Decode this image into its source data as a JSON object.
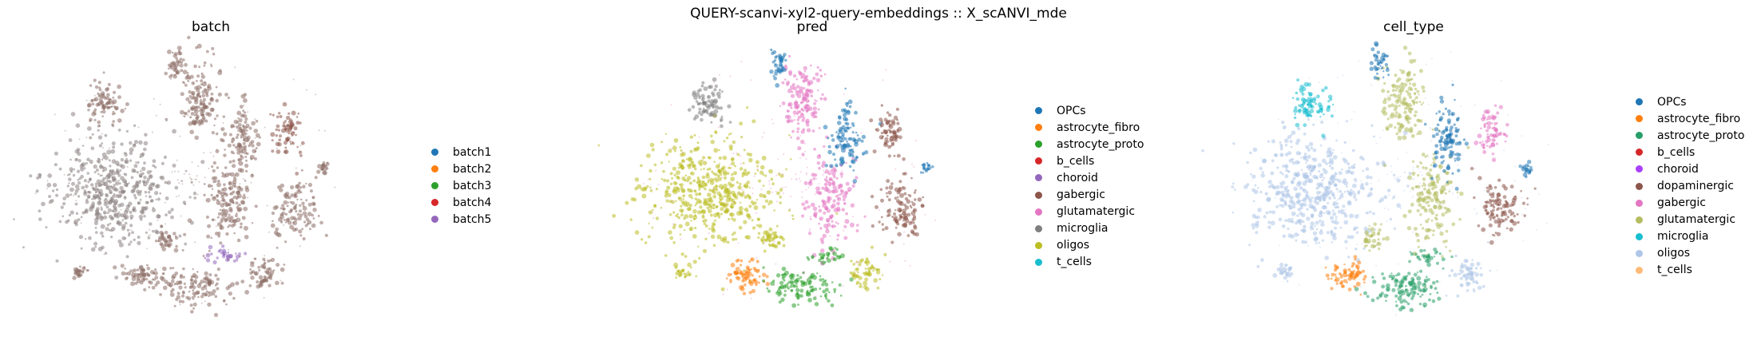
{
  "suptitle": "QUERY-scanvi-xyl2-query-embeddings :: X_scANVI_mde",
  "chart_data": [
    {
      "type": "scatter",
      "title": "batch",
      "legend_placement": "right",
      "grid": false,
      "axes_visible": false,
      "legend": [
        {
          "label": "batch1",
          "color": "#1f77b4"
        },
        {
          "label": "batch2",
          "color": "#ff7f0e"
        },
        {
          "label": "batch3",
          "color": "#2ca02c"
        },
        {
          "label": "batch4",
          "color": "#d62728"
        },
        {
          "label": "batch5",
          "color": "#9467bd"
        }
      ]
    },
    {
      "type": "scatter",
      "title": "pred",
      "legend_placement": "right",
      "grid": false,
      "axes_visible": false,
      "legend": [
        {
          "label": "OPCs",
          "color": "#1f77b4"
        },
        {
          "label": "astrocyte_fibro",
          "color": "#ff7f0e"
        },
        {
          "label": "astrocyte_proto",
          "color": "#2ca02c"
        },
        {
          "label": "b_cells",
          "color": "#d62728"
        },
        {
          "label": "choroid",
          "color": "#9467bd"
        },
        {
          "label": "gabergic",
          "color": "#8c564b"
        },
        {
          "label": "glutamatergic",
          "color": "#e377c2"
        },
        {
          "label": "microglia",
          "color": "#7f7f7f"
        },
        {
          "label": "oligos",
          "color": "#bcbd22"
        },
        {
          "label": "t_cells",
          "color": "#17becf"
        }
      ]
    },
    {
      "type": "scatter",
      "title": "cell_type",
      "legend_placement": "right",
      "grid": false,
      "axes_visible": false,
      "legend": [
        {
          "label": "OPCs",
          "color": "#1f77b4"
        },
        {
          "label": "astrocyte_fibro",
          "color": "#ff7f0e"
        },
        {
          "label": "astrocyte_proto",
          "color": "#279e68"
        },
        {
          "label": "b_cells",
          "color": "#d62728"
        },
        {
          "label": "choroid",
          "color": "#aa40fc"
        },
        {
          "label": "dopaminergic",
          "color": "#8c564b"
        },
        {
          "label": "gabergic",
          "color": "#e377c2"
        },
        {
          "label": "glutamatergic",
          "color": "#b5bd61"
        },
        {
          "label": "microglia",
          "color": "#17becf"
        },
        {
          "label": "oligos",
          "color": "#aec7e8"
        },
        {
          "label": "t_cells",
          "color": "#ffbb78"
        }
      ]
    }
  ]
}
